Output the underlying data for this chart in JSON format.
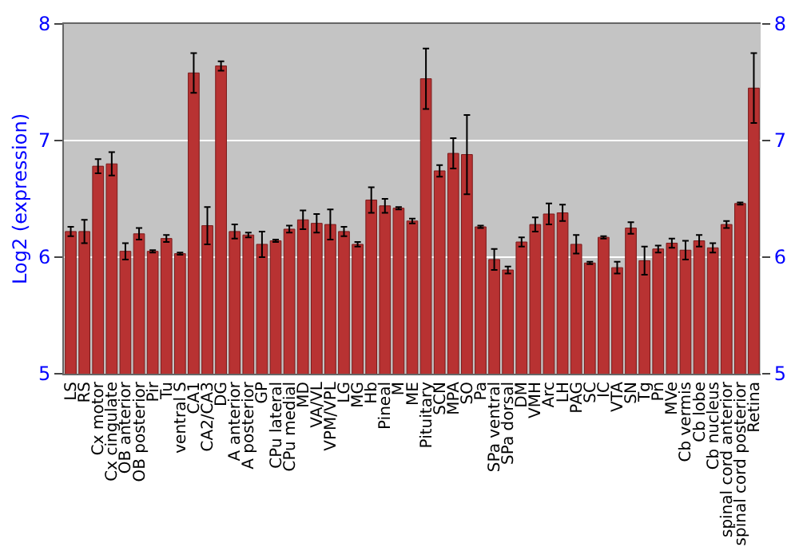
{
  "chart_data": {
    "type": "bar",
    "ylabel": "Log2 (expression)",
    "categories": [
      "LS",
      "RS",
      "Cx motor",
      "Cx cingulate",
      "OB anterior",
      "OB posterior",
      "Pir",
      "Tu",
      "ventral S",
      "CA1",
      "CA2/CA3",
      "DG",
      "A anterior",
      "A posterior",
      "GP",
      "CPu lateral",
      "CPu medial",
      "MD",
      "VA/VL",
      "VPM/VPL",
      "LG",
      "MG",
      "Hb",
      "Pineal",
      "M",
      "ME",
      "Pituitary",
      "SCN",
      "MPA",
      "SO",
      "Pa",
      "SPa ventral",
      "SPa dorsal",
      "DM",
      "VMH",
      "Arc",
      "LH",
      "PAG",
      "SC",
      "IC",
      "VTA",
      "SN",
      "Tg",
      "Pn",
      "MVe",
      "Cb vermis",
      "Cb lobe",
      "Cb nucleus",
      "spinal cord anterior",
      "spinal cord posterior",
      "Retina"
    ],
    "values": [
      6.22,
      6.22,
      6.78,
      6.8,
      6.05,
      6.2,
      6.05,
      6.16,
      6.03,
      7.58,
      6.27,
      7.64,
      6.22,
      6.19,
      6.11,
      6.14,
      6.24,
      6.32,
      6.29,
      6.28,
      6.22,
      6.11,
      6.49,
      6.44,
      6.42,
      6.31,
      7.53,
      6.74,
      6.89,
      6.88,
      6.26,
      5.98,
      5.89,
      6.13,
      6.28,
      6.37,
      6.38,
      6.11,
      5.95,
      6.17,
      5.91,
      6.25,
      5.97,
      6.07,
      6.12,
      6.06,
      6.14,
      6.08,
      6.28,
      6.46,
      7.45
    ],
    "errors": [
      0.04,
      0.1,
      0.06,
      0.1,
      0.07,
      0.05,
      0.01,
      0.03,
      0.01,
      0.17,
      0.16,
      0.04,
      0.06,
      0.02,
      0.11,
      0.01,
      0.03,
      0.08,
      0.08,
      0.13,
      0.04,
      0.02,
      0.11,
      0.06,
      0.01,
      0.02,
      0.26,
      0.05,
      0.13,
      0.34,
      0.01,
      0.09,
      0.03,
      0.04,
      0.06,
      0.09,
      0.07,
      0.08,
      0.01,
      0.01,
      0.05,
      0.05,
      0.12,
      0.03,
      0.04,
      0.08,
      0.05,
      0.04,
      0.03,
      0.01,
      0.3
    ],
    "color": "#b83232",
    "ylim": [
      5,
      8
    ],
    "yticks": [
      5,
      6,
      7,
      8
    ],
    "y2lim": [
      5,
      8
    ],
    "y2ticks": [
      5,
      6,
      7,
      8
    ],
    "grid": "y"
  }
}
